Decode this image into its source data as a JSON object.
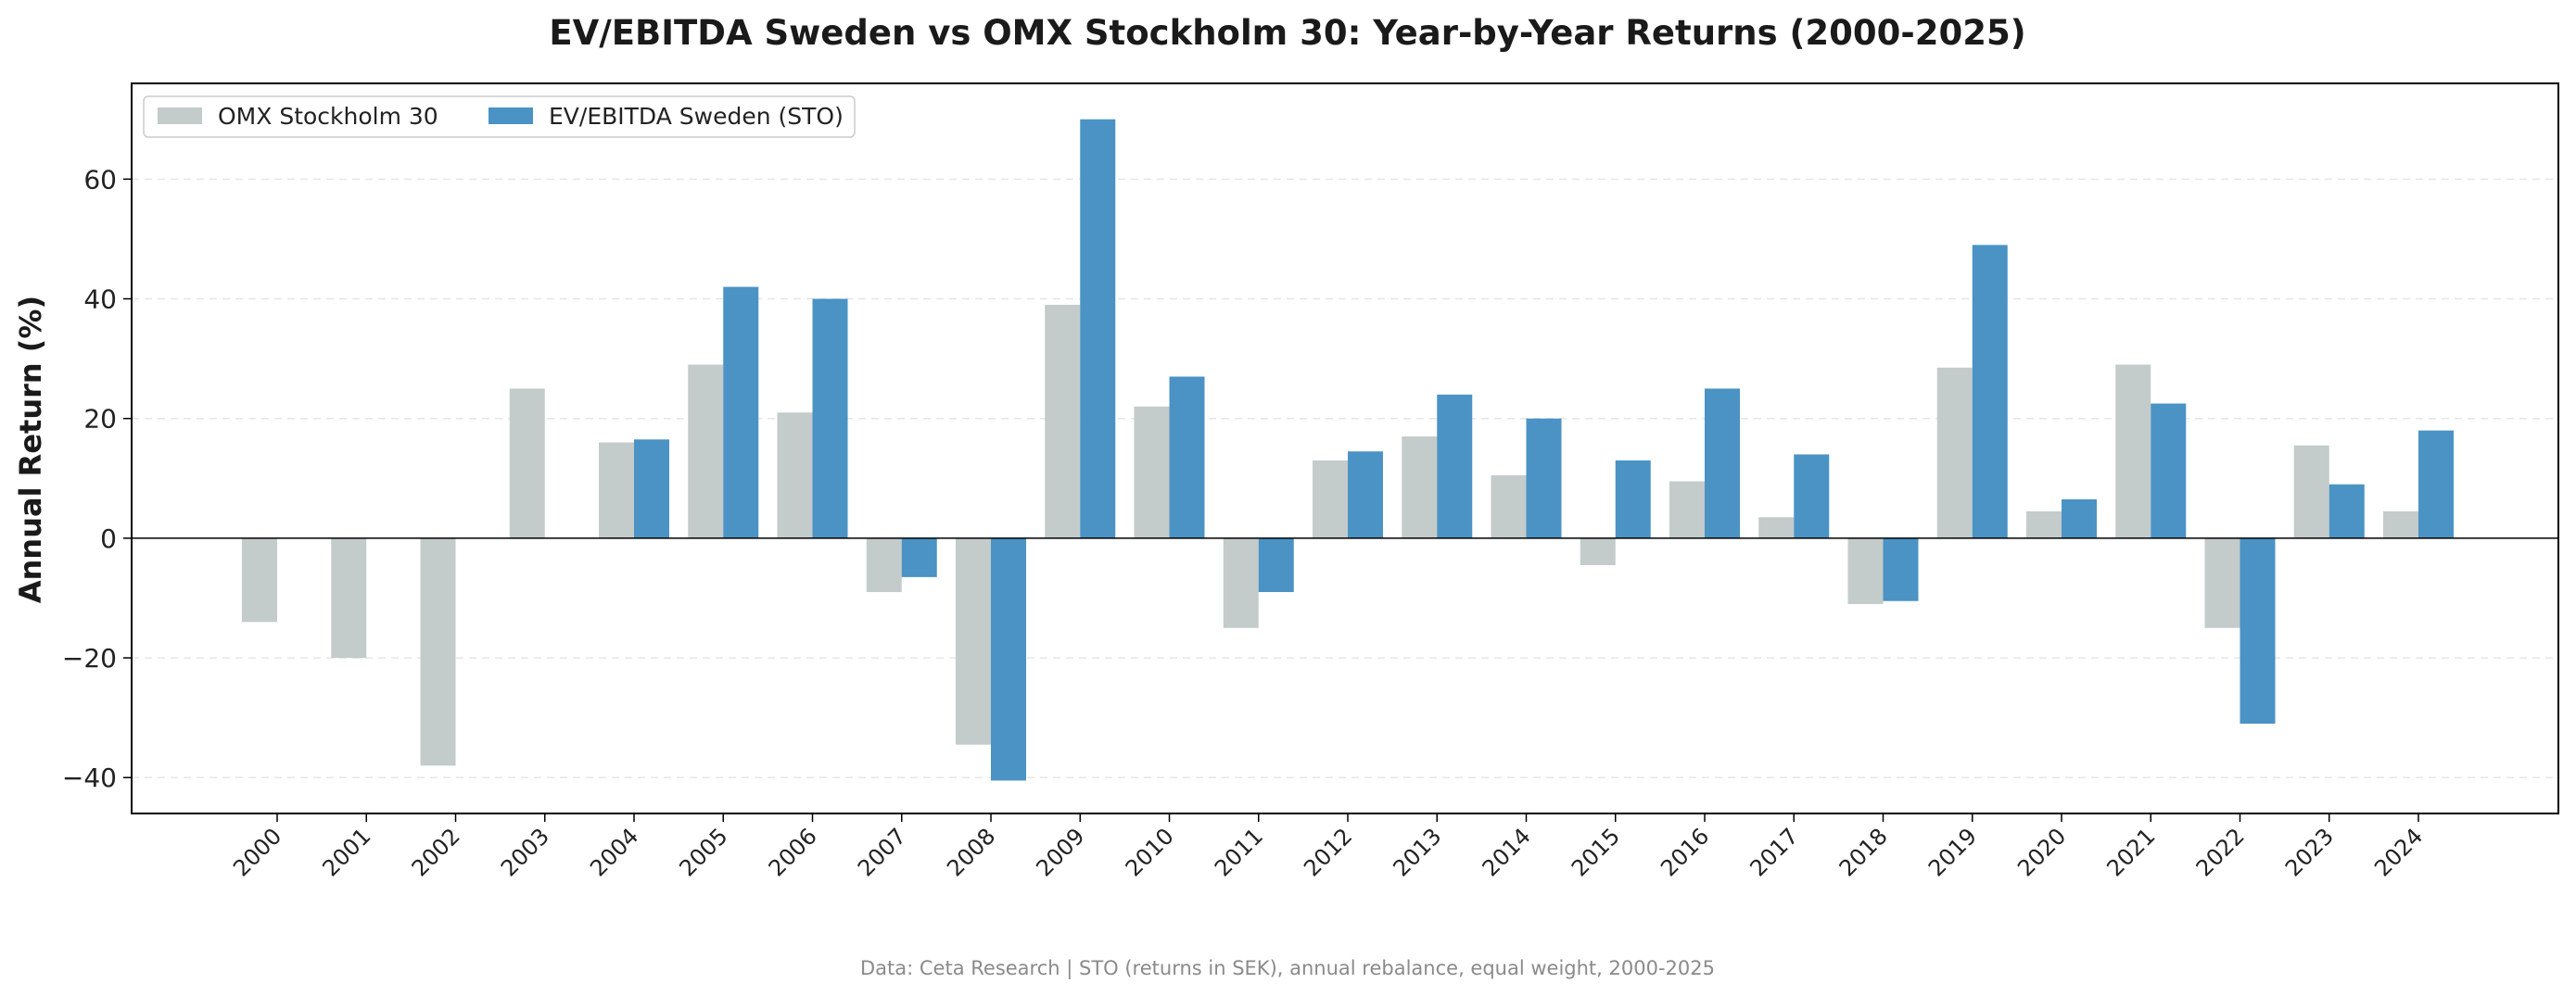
{
  "chart_data": {
    "type": "bar",
    "title": "EV/EBITDA Sweden vs OMX Stockholm 30: Year-by-Year Returns (2000-2025)",
    "xlabel": "",
    "ylabel": "Annual Return (%)",
    "ylim": [
      -46,
      76
    ],
    "yticks": [
      -40,
      -20,
      0,
      20,
      40,
      60
    ],
    "grid": "horizontal dashed",
    "legend_position": "top-left",
    "categories": [
      "2000",
      "2001",
      "2002",
      "2003",
      "2004",
      "2005",
      "2006",
      "2007",
      "2008",
      "2009",
      "2010",
      "2011",
      "2012",
      "2013",
      "2014",
      "2015",
      "2016",
      "2017",
      "2018",
      "2019",
      "2020",
      "2021",
      "2022",
      "2023",
      "2024"
    ],
    "series": [
      {
        "name": "OMX Stockholm 30",
        "color": "#c3cbcb",
        "values": [
          -14,
          -20,
          -38,
          25,
          16,
          29,
          21,
          -9,
          -34.5,
          39,
          22,
          -15,
          13,
          17,
          10.5,
          -4.5,
          9.5,
          3.5,
          -11,
          28.5,
          4.5,
          29,
          -15,
          15.5,
          4.5
        ]
      },
      {
        "name": "EV/EBITDA Sweden (STO)",
        "color": "#4a93c4",
        "values": [
          null,
          null,
          null,
          null,
          16.5,
          42,
          40,
          -6.5,
          -40.5,
          70,
          27,
          -9,
          14.5,
          24,
          20,
          13,
          25,
          14,
          -10.5,
          49,
          6.5,
          22.5,
          -31,
          9,
          18
        ]
      }
    ],
    "footer": "Data: Ceta Research | STO (returns in SEK), annual rebalance, equal weight, 2000-2025"
  }
}
